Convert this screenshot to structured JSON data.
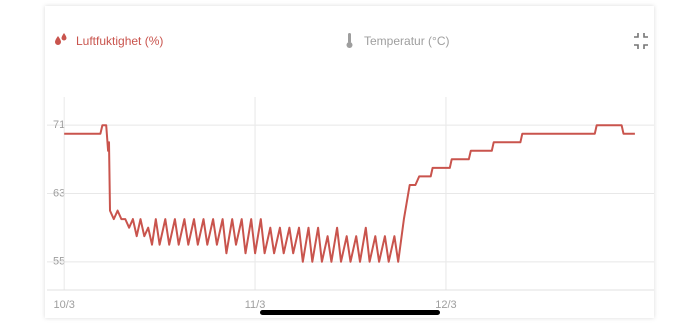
{
  "chart_data": {
    "type": "line",
    "series": [
      {
        "name": "Luftfuktighet (%)",
        "color": "#c9544d",
        "x": [
          0,
          0.19,
          0.2,
          0.22,
          0.23,
          0.235,
          0.24,
          0.26,
          0.28,
          0.3,
          0.32,
          0.34,
          0.36,
          0.38,
          0.4,
          0.42,
          0.44,
          0.46,
          0.48,
          0.5,
          0.53,
          0.55,
          0.58,
          0.6,
          0.63,
          0.65,
          0.68,
          0.7,
          0.73,
          0.75,
          0.78,
          0.8,
          0.83,
          0.85,
          0.88,
          0.9,
          0.93,
          0.95,
          0.98,
          1.0,
          1.03,
          1.05,
          1.08,
          1.1,
          1.13,
          1.15,
          1.18,
          1.2,
          1.23,
          1.25,
          1.28,
          1.3,
          1.33,
          1.35,
          1.38,
          1.4,
          1.43,
          1.45,
          1.48,
          1.5,
          1.53,
          1.55,
          1.58,
          1.6,
          1.63,
          1.65,
          1.68,
          1.7,
          1.73,
          1.75,
          1.78,
          1.81,
          1.84,
          1.86,
          1.92,
          1.93,
          2.02,
          2.03,
          2.12,
          2.13,
          2.24,
          2.25,
          2.39,
          2.4,
          2.78,
          2.79,
          2.92,
          2.93,
          2.99
        ],
        "values": [
          70,
          70,
          71,
          71,
          68,
          69,
          61,
          60,
          61,
          60,
          60,
          59,
          60,
          58,
          60,
          58,
          59,
          57,
          60,
          57,
          60,
          57,
          60,
          57,
          60,
          57,
          60,
          57,
          60,
          57,
          60,
          57,
          60,
          56,
          60,
          57,
          60,
          56,
          60,
          56,
          60,
          56,
          59,
          56,
          59,
          56,
          59,
          56,
          59,
          55,
          59,
          55,
          59,
          55,
          58,
          55,
          59,
          55,
          58,
          55,
          58,
          55,
          59,
          55,
          58,
          55,
          58,
          55,
          58,
          55,
          60,
          64,
          64,
          65,
          65,
          66,
          66,
          67,
          67,
          68,
          68,
          69,
          69,
          70,
          70,
          71,
          71,
          70,
          70
        ]
      },
      {
        "name": "Temperatur (°C)",
        "color": "#9e9e9e",
        "hidden": true
      }
    ],
    "xlim": [
      -0.09,
      3.09
    ],
    "xticks": [
      {
        "value": 0,
        "label": "10/3"
      },
      {
        "value": 1,
        "label": "11/3"
      },
      {
        "value": 2,
        "label": "12/3"
      }
    ],
    "ylim": [
      51.7,
      74.3
    ],
    "yticks": [
      55,
      63,
      71
    ],
    "grid": true
  }
}
